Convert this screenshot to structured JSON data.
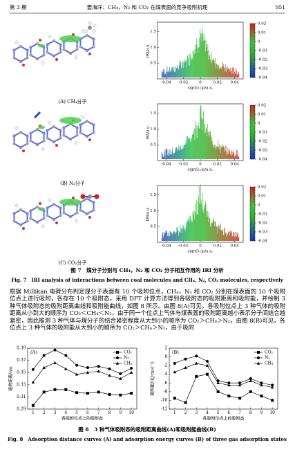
{
  "header": {
    "issue": "第 3 期",
    "title": "姜海洋：CH₄，N₂ 和 CO₂ 在煤表面的竞争吸附机理",
    "page": "951"
  },
  "figure7": {
    "panels": [
      {
        "caption": "(A) CH₄分子"
      },
      {
        "caption": "(B) N₂分子"
      },
      {
        "caption": "(C) CO₂分子"
      }
    ],
    "iri": {
      "y_label": "IRI/a.u.",
      "x_label": "sign(λ₂)ρ/a.u.",
      "xlim": [
        -0.05,
        0.05
      ],
      "xticks": [
        -0.04,
        -0.02,
        0,
        0.02,
        0.04
      ],
      "ylim": [
        0,
        1.8
      ],
      "yticks": [
        0.5,
        {
          "value": 1,
          "label": "1.0"
        },
        1.5
      ],
      "colorbar_lim": [
        -0.04,
        0.02
      ],
      "colorbar_ticks": [
        0.02,
        0.01,
        0,
        -0.01,
        -0.02,
        -0.03,
        -0.04
      ]
    },
    "caption_cn": "图 7　煤分子分别与 CH₄，N₂ 和 CO₂ 分子相互作用的 IRI 分析",
    "caption_en": "Fig. 7　IRI analysis of interactions between coal molecules and CH₄, N₂, CO₂ molecules, respectively"
  },
  "paragraph": "根据 Millikan 电荷分布判定煤分子表面有 10 个吸附位点，CH₄，N₂ 和 CO₂ 分别在煤表面的 10 个吸附位点上进行吸附，各存在 10 个吸附态。采用 DFT 计算方法得到各吸附态的吸附距离和吸附能，并绘制 3 种气体吸附态的吸附距离曲线和吸附能曲线，如图 8 所示。由图 8(A)可见，各吸附位点上 3 种气体的吸附距离从小到大的顺序为 CO₂＜CH₄＜N₂，由于同一个位点上气体与煤表面的吸附距离越小表示分子间结合越紧密，因此推测 3 种气体与煤分子的结合紧密程度从大到小的顺序为 CO₂＞CH₄＞N₂。由图 8(B)可见，各位点上 3 种气体的吸附能从大到小的顺序为 CO₂＞CH₄＞N₂，由于吸附",
  "figure8": {
    "charts": [
      {
        "type": "line",
        "panel_label": "(A)",
        "y_label": "吸附距离/nm",
        "x_label": "各吸附位点上的吸附态",
        "x": [
          1,
          2,
          3,
          4,
          5,
          6,
          7,
          8,
          9,
          10
        ],
        "xlim": [
          0.5,
          10.5
        ],
        "xticks": [
          1,
          2,
          3,
          4,
          5,
          6,
          7,
          8,
          9,
          10
        ],
        "ylim": [
          0.29,
          0.39
        ],
        "yticks": [
          0.29,
          0.31,
          0.33,
          0.35,
          0.37,
          0.39
        ],
        "series": [
          {
            "name": "CO₂",
            "marker": "square",
            "color": "#000000",
            "values": [
              0.296,
              0.318,
              0.322,
              0.322,
              0.317,
              0.316,
              0.318,
              0.314,
              0.313,
              0.316
            ]
          },
          {
            "name": "N₂",
            "marker": "circle",
            "color": "#000000",
            "values": [
              0.355,
              0.378,
              0.387,
              0.378,
              0.362,
              0.358,
              0.36,
              0.356,
              0.348,
              0.357
            ]
          },
          {
            "name": "CH₄",
            "marker": "triangle",
            "color": "#000000",
            "values": [
              0.334,
              0.358,
              0.366,
              0.356,
              0.347,
              0.35,
              0.352,
              0.345,
              0.34,
              0.35
            ]
          }
        ]
      },
      {
        "type": "line",
        "panel_label": "(B)",
        "y_label": "吸附能/(kJ·mol⁻¹)",
        "x_label": "各吸附位点上的吸附态",
        "x": [
          1,
          2,
          3,
          4,
          5,
          6,
          7,
          8,
          9,
          10
        ],
        "xlim": [
          0.5,
          10.5
        ],
        "xticks": [
          1,
          2,
          3,
          4,
          5,
          6,
          7,
          8,
          9,
          10
        ],
        "ylim": [
          -12,
          2
        ],
        "yticks": [
          -12,
          -10,
          -8,
          -6,
          -4,
          -2,
          0,
          2
        ],
        "series": [
          {
            "name": "CO₂",
            "marker": "square",
            "color": "#000000",
            "values": [
              -9.5,
              -10.5,
              -4.5,
              -4,
              -8,
              -9,
              -9.5,
              -8,
              -9,
              -10
            ]
          },
          {
            "name": "N₂",
            "marker": "circle",
            "color": "#000000",
            "values": [
              -1.5,
              -0.5,
              0.2,
              -1,
              -5.5,
              -6,
              -6,
              -5,
              -6,
              -6.5
            ]
          },
          {
            "name": "CH₄",
            "marker": "triangle",
            "color": "#000000",
            "values": [
              -3.5,
              -2.5,
              -1.5,
              -2,
              -6,
              -6.5,
              -6.5,
              -5.5,
              -6.5,
              -7
            ]
          }
        ]
      }
    ],
    "caption_cn": "图 8　3 种气体吸附态的吸附距离曲线(A)和吸附能曲线(B)",
    "caption_en": "Fig. 8　Adsorption distance curves (A) and adsorption energy curves (B) of three gas adsorption states"
  }
}
